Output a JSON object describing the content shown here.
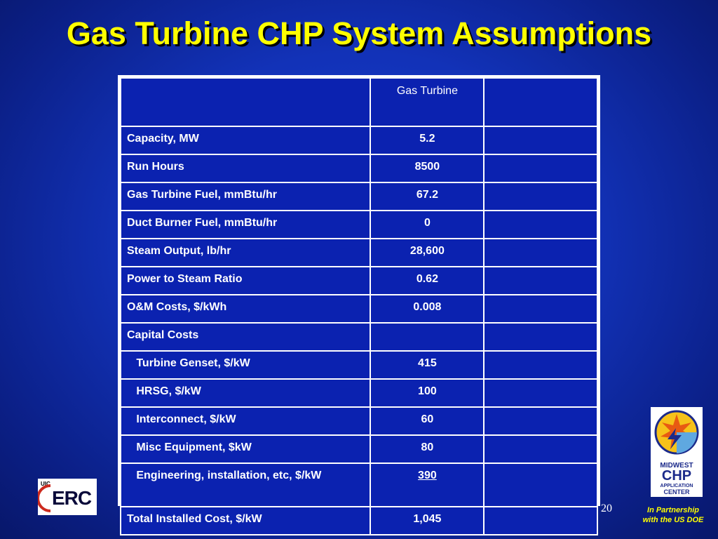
{
  "slide": {
    "title": "Gas Turbine CHP System Assumptions",
    "page_number": "20"
  },
  "table": {
    "header": [
      "",
      "Gas Turbine",
      ""
    ],
    "rows": [
      [
        "Capacity, MW",
        "5.2",
        ""
      ],
      [
        "Run Hours",
        "8500",
        ""
      ],
      [
        "Gas Turbine Fuel, mmBtu/hr",
        "67.2",
        ""
      ],
      [
        "Duct Burner Fuel, mmBtu/hr",
        "0",
        ""
      ],
      [
        "Steam Output, lb/hr",
        "28,600",
        ""
      ],
      [
        "Power to Steam Ratio",
        "0.62",
        ""
      ],
      [
        "O&M Costs, $/kWh",
        "0.008",
        ""
      ],
      [
        "Capital Costs",
        "",
        ""
      ],
      [
        "   Turbine Genset, $/kW",
        "415",
        ""
      ],
      [
        "   HRSG, $/kW",
        "100",
        ""
      ],
      [
        "   Interconnect, $/kW",
        "60",
        ""
      ],
      [
        "   Misc Equipment, $kW",
        "80",
        ""
      ],
      [
        "   Engineering, installation, etc, $/kW",
        "390",
        ""
      ],
      [
        "Total Installed Cost, $/kW",
        "1,045",
        ""
      ]
    ]
  },
  "logos": {
    "left_logo_small": "UIC",
    "left_logo_main": "ERC",
    "right_logo_line1": "MIDWEST",
    "right_logo_line2": "CHP",
    "right_logo_line3": "APPLICATION",
    "right_logo_line4": "CENTER"
  },
  "footer": {
    "partnership_line1": "In Partnership",
    "partnership_line2": "with the US DOE"
  },
  "colors": {
    "background": "#1232b8",
    "title": "#ffff00",
    "table_fill": "#0b22b0",
    "border": "#ffffff"
  }
}
